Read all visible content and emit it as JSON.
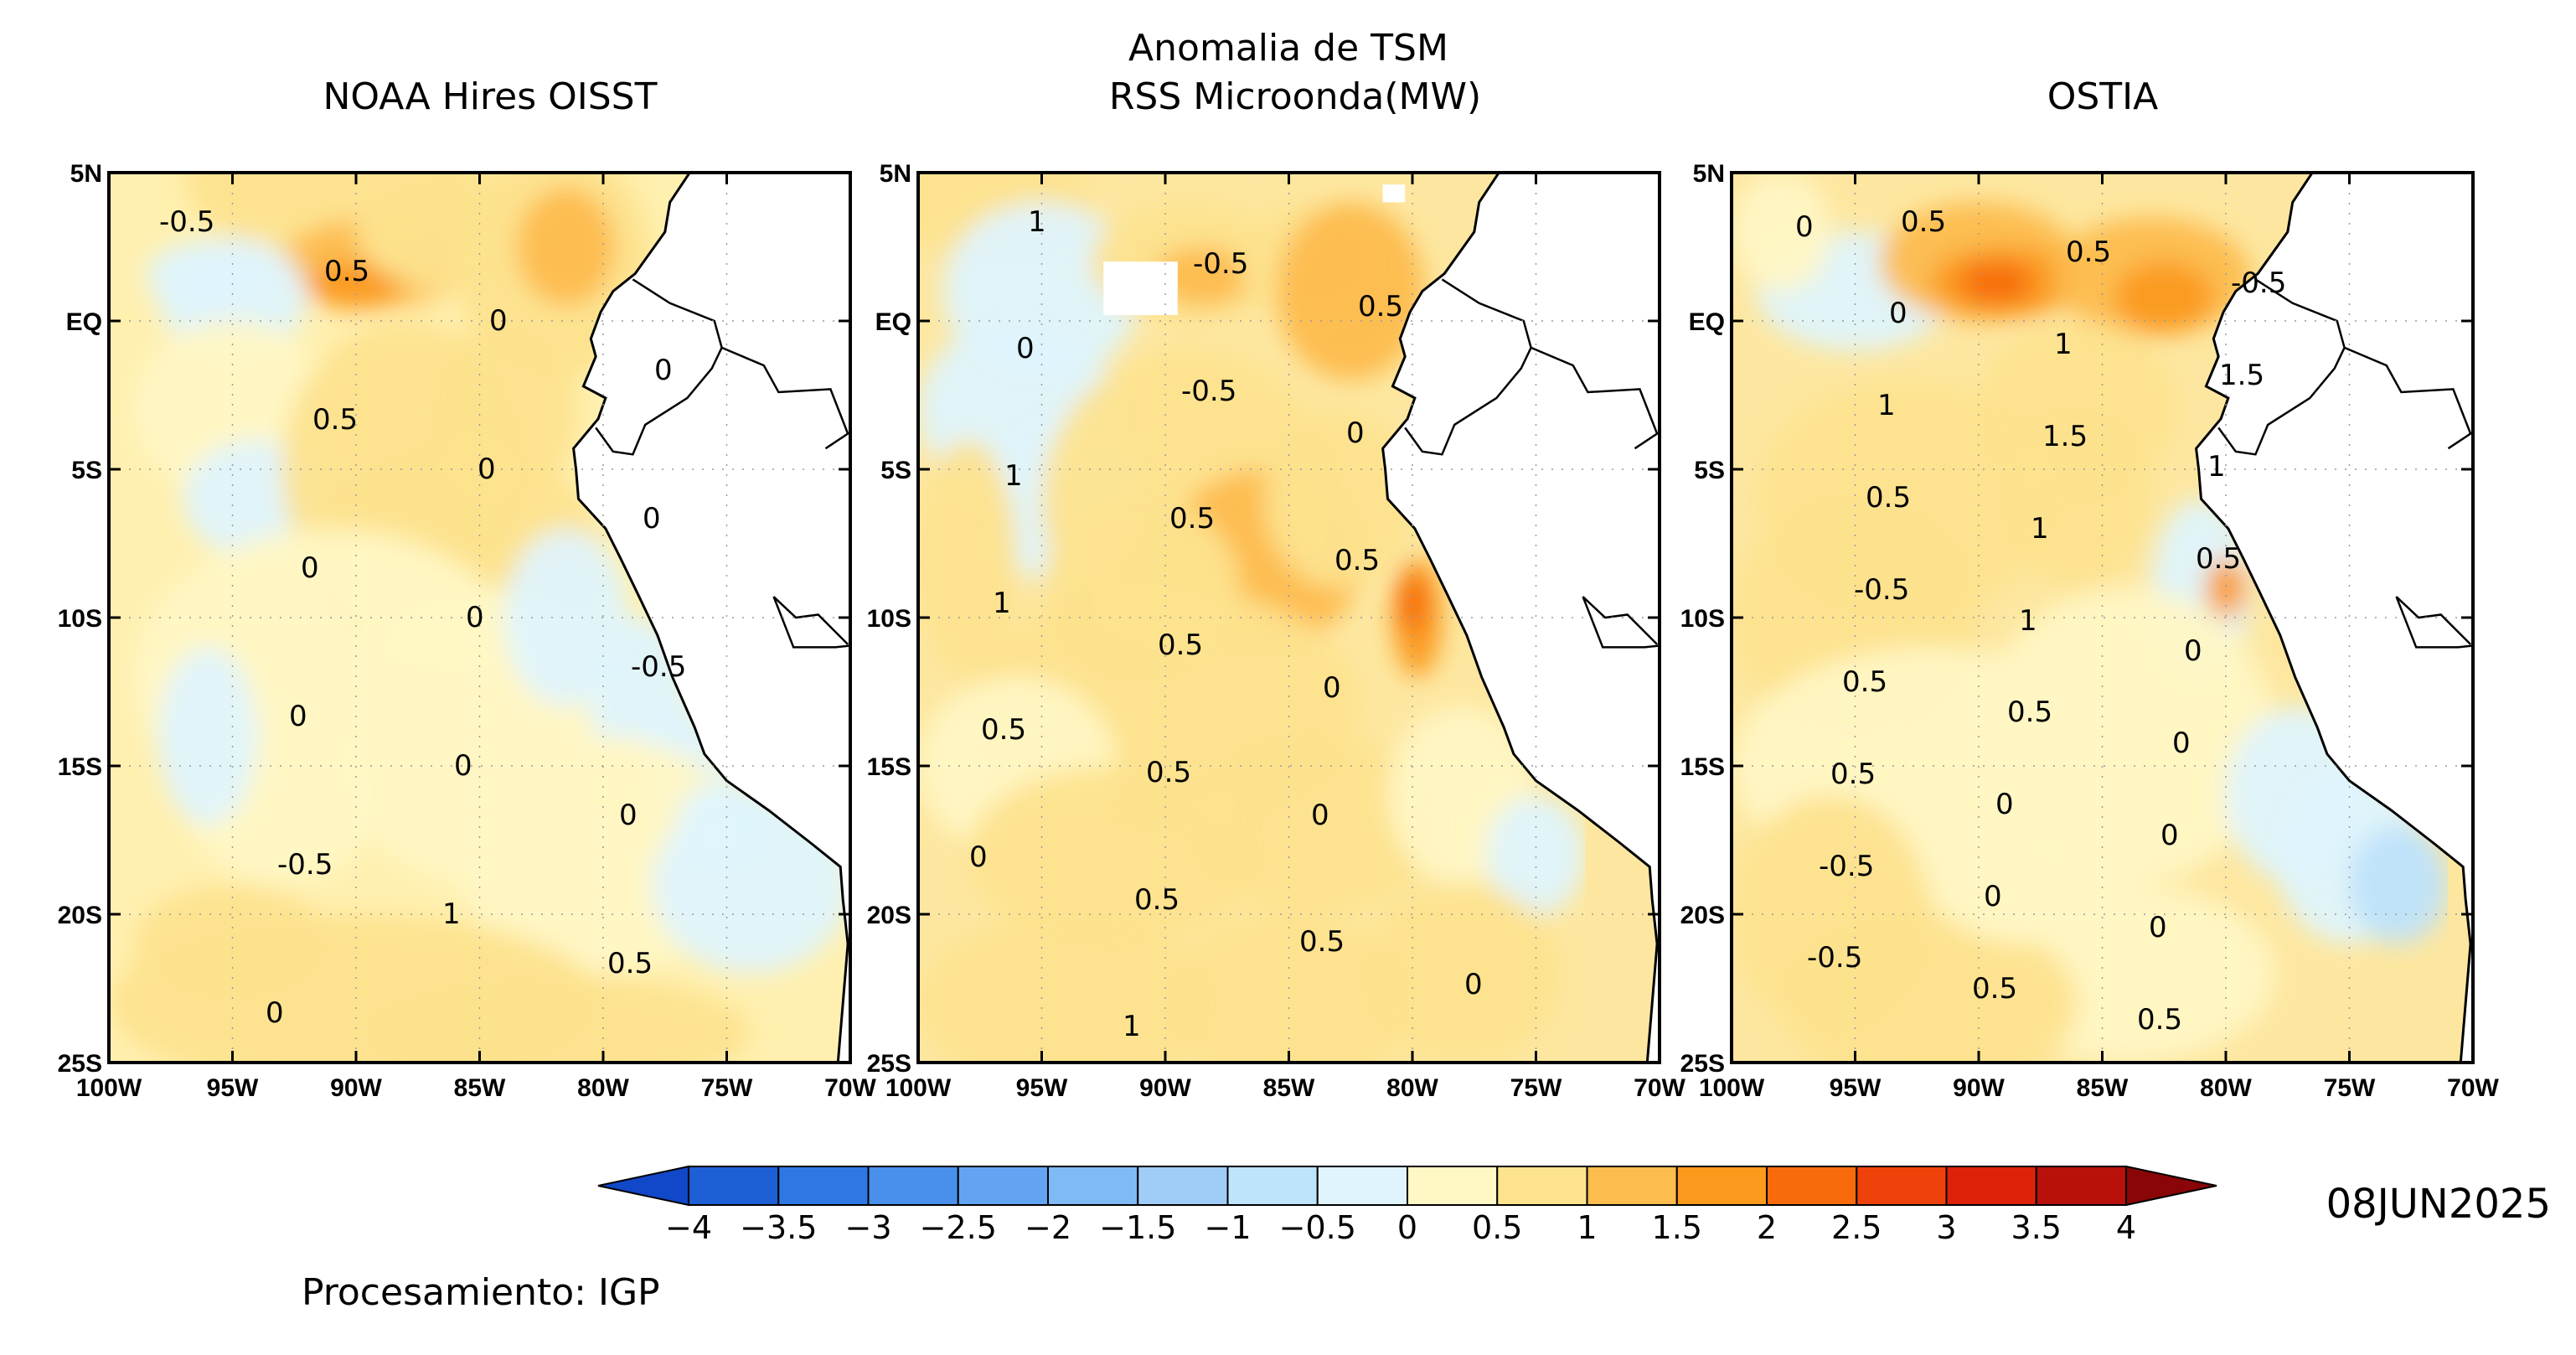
{
  "header": {
    "center_title_line1": "Anomalia de TSM"
  },
  "panels": [
    {
      "id": "noaa",
      "title": "NOAA Hires OISST",
      "contour_labels": [
        "-0.5",
        "0.5",
        "0",
        "0",
        "0.5",
        "0",
        "0",
        "0",
        "0",
        "-0.5",
        "0",
        "0",
        "0",
        "-0.5",
        "1",
        "0.5",
        "0"
      ]
    },
    {
      "id": "rss",
      "title": "RSS Microonda(MW)",
      "contour_labels": [
        "1",
        "-0.5",
        "0.5",
        "0",
        "-0.5",
        "0",
        "1",
        "0.5",
        "0.5",
        "1",
        "0.5",
        "0",
        "0.5",
        "0.5",
        "0",
        "0",
        "0.5",
        "0.5",
        "0",
        "1"
      ]
    },
    {
      "id": "ostia",
      "title": "OSTIA",
      "contour_labels": [
        "0.5",
        "0.5",
        "-0.5",
        "0",
        "1",
        "1.5",
        "1",
        "1.5",
        "1",
        "0.5",
        "1",
        "0.5",
        "-0.5",
        "1",
        "0",
        "0.5",
        "0.5",
        "0",
        "0.5",
        "0",
        "0",
        "-0.5",
        "0",
        "0",
        "-0.5",
        "0.5",
        "0.5",
        "0"
      ]
    }
  ],
  "axes": {
    "lat_ticks": [
      "5N",
      "EQ",
      "5S",
      "10S",
      "15S",
      "20S",
      "25S"
    ],
    "lon_ticks_first": [
      "100W",
      "95W",
      "90W",
      "85W",
      "80W",
      "75W",
      "70W"
    ],
    "lon_ticks_other": [
      "100W",
      "95W",
      "90W",
      "85W",
      "80W",
      "75W",
      "70W"
    ],
    "lat_range": [
      -25,
      5
    ],
    "lon_range": [
      -100,
      -70
    ]
  },
  "colorbar": {
    "levels": [
      "-4",
      "-3.5",
      "-3",
      "-2.5",
      "-2",
      "-1.5",
      "-1",
      "-0.5",
      "0",
      "0.5",
      "1",
      "1.5",
      "2",
      "2.5",
      "3",
      "3.5",
      "4"
    ],
    "colors": [
      "#1f5fd6",
      "#2f78e3",
      "#4890ec",
      "#63a4f2",
      "#7fb9f6",
      "#9fcdf8",
      "#bfe3fa",
      "#dff4fc",
      "#fff7c4",
      "#fde38e",
      "#fdbc4e",
      "#fb9a1d",
      "#f76b0c",
      "#ef420a",
      "#de220a",
      "#b8100b"
    ],
    "below_color": "#1147c9",
    "above_color": "#8a0507"
  },
  "date": "08JUN2025",
  "footer": "Procesamiento: IGP"
}
